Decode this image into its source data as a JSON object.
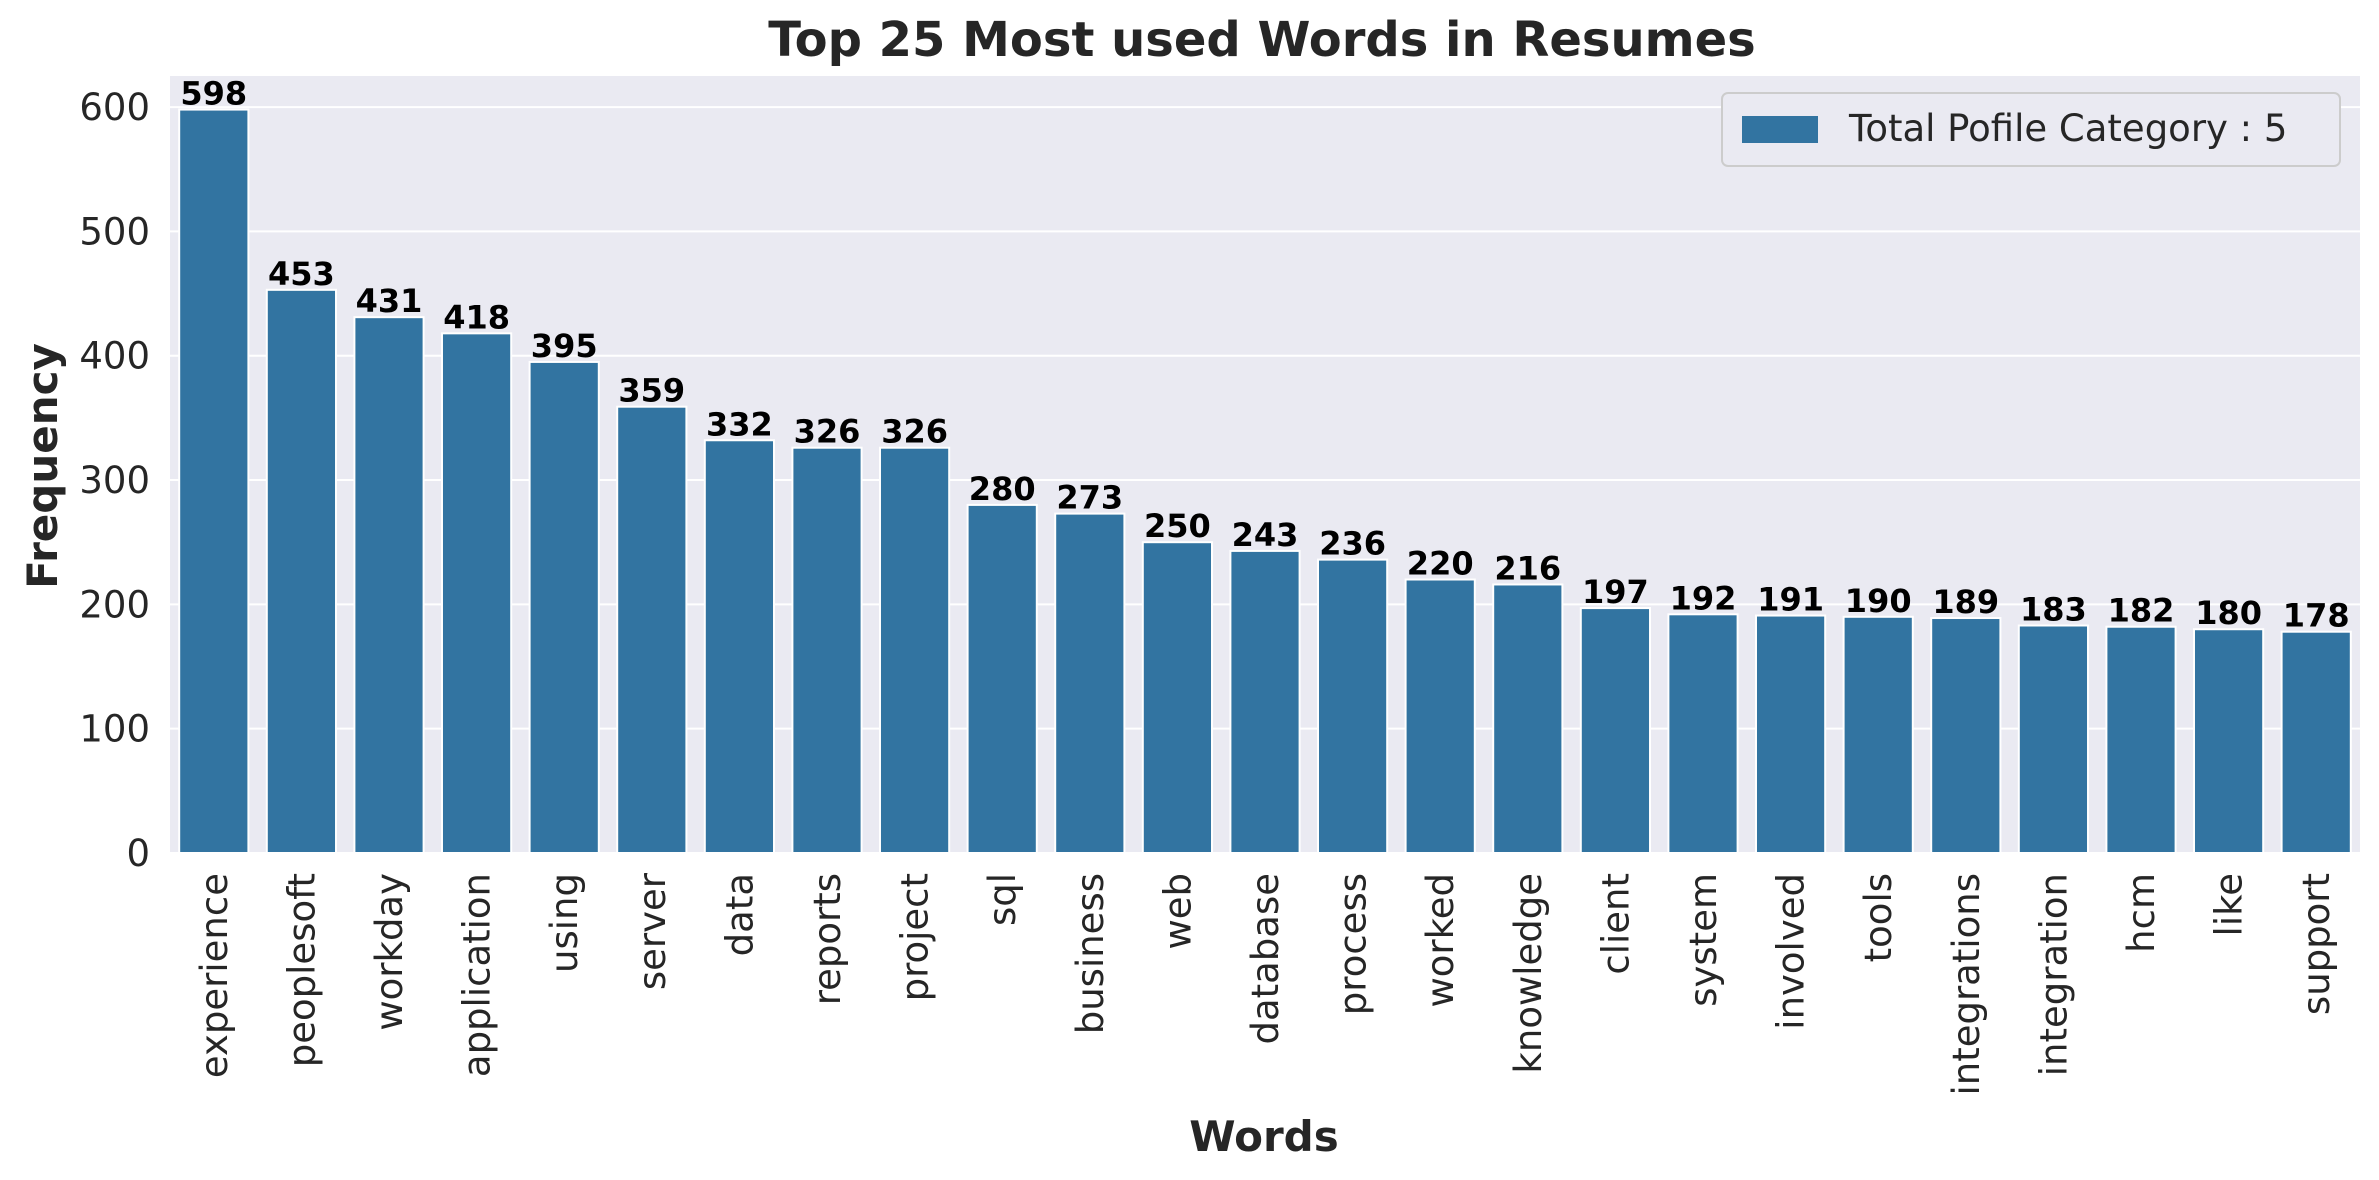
{
  "chart_data": {
    "type": "bar",
    "title": "Top 25 Most used Words in Resumes",
    "xlabel": "Words",
    "ylabel": "Frequency",
    "ylim": [
      0,
      625
    ],
    "yticks": [
      0,
      100,
      200,
      300,
      400,
      500,
      600
    ],
    "grid": true,
    "legend_position": "top-right",
    "legend_label": "Total Pofile Category : 5",
    "bar_color": "#3274a1",
    "background_color": "#eaeaf2",
    "categories": [
      "experience",
      "peoplesoft",
      "workday",
      "application",
      "using",
      "server",
      "data",
      "reports",
      "project",
      "sql",
      "business",
      "web",
      "database",
      "process",
      "worked",
      "knowledge",
      "client",
      "system",
      "involved",
      "tools",
      "integrations",
      "integration",
      "hcm",
      "like",
      "support"
    ],
    "values": [
      598,
      453,
      431,
      418,
      395,
      359,
      332,
      326,
      326,
      280,
      273,
      250,
      243,
      236,
      220,
      216,
      197,
      192,
      191,
      190,
      189,
      183,
      182,
      180,
      178
    ]
  }
}
